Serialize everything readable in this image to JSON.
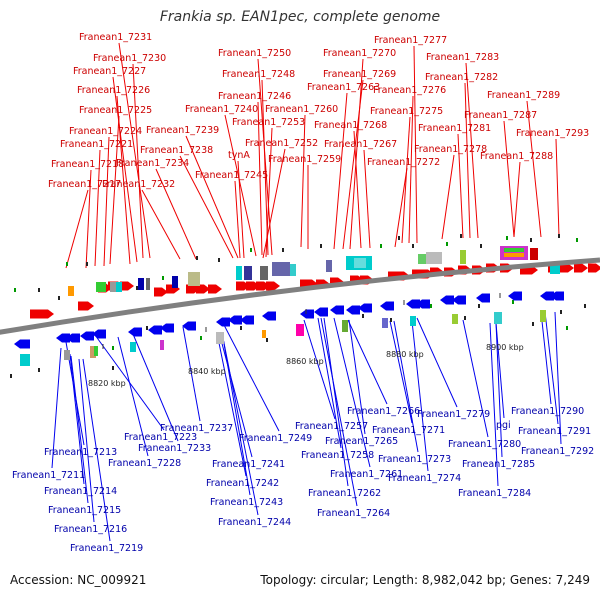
{
  "title": "Frankia sp. EAN1pec, complete genome",
  "footer": {
    "accession": "Accession: NC_009921",
    "summary": "Topology: circular; Length: 8,982,042 bp; Genes: 7,249"
  },
  "colors": {
    "forward": "#ee0000",
    "reverse": "#0000ee",
    "backbone": "#808080"
  },
  "ticks": [
    "8820 kbp",
    "8840 kbp",
    "8860 kbp",
    "8880 kbp",
    "8900 kbp"
  ],
  "top_genes": [
    "Franean1_7231",
    "Franean1_7230",
    "Franean1_7227",
    "Franean1_7226",
    "Franean1_7225",
    "Franean1_7224",
    "Franean1_7221",
    "Franean1_7218",
    "Franean1_7217",
    "Franean1_7250",
    "Franean1_7248",
    "Franean1_7246",
    "Franean1_7240",
    "Franean1_7239",
    "Franean1_7238",
    "Franean1_7234",
    "Franean1_7232",
    "Franean1_7253",
    "Franean1_7252",
    "tynA",
    "Franean1_7245",
    "Franean1_7260",
    "Franean1_7259",
    "Franean1_7270",
    "Franean1_7269",
    "Franean1_7263",
    "Franean1_7268",
    "Franean1_7267",
    "Franean1_7272",
    "Franean1_7277",
    "Franean1_7276",
    "Franean1_7275",
    "Franean1_7283",
    "Franean1_7282",
    "Franean1_7281",
    "Franean1_7278",
    "Franean1_7289",
    "Franean1_7287",
    "Franean1_7288",
    "Franean1_7293"
  ],
  "bottom_genes": [
    "Franean1_7223",
    "Franean1_7213",
    "Franean1_7211",
    "Franean1_7214",
    "Franean1_7215",
    "Franean1_7216",
    "Franean1_7219",
    "Franean1_7233",
    "Franean1_7228",
    "Franean1_7237",
    "Franean1_7249",
    "Franean1_7241",
    "Franean1_7242",
    "Franean1_7243",
    "Franean1_7244",
    "Franean1_7257",
    "Franean1_7258",
    "Franean1_7261",
    "Franean1_7262",
    "Franean1_7264",
    "Franean1_7266",
    "Franean1_7265",
    "Franean1_7271",
    "Franean1_7273",
    "Franean1_7274",
    "Franean1_7279",
    "Franean1_7280",
    "pgi",
    "Franean1_7285",
    "Franean1_7284",
    "Franean1_7290",
    "Franean1_7291",
    "Franean1_7292"
  ]
}
